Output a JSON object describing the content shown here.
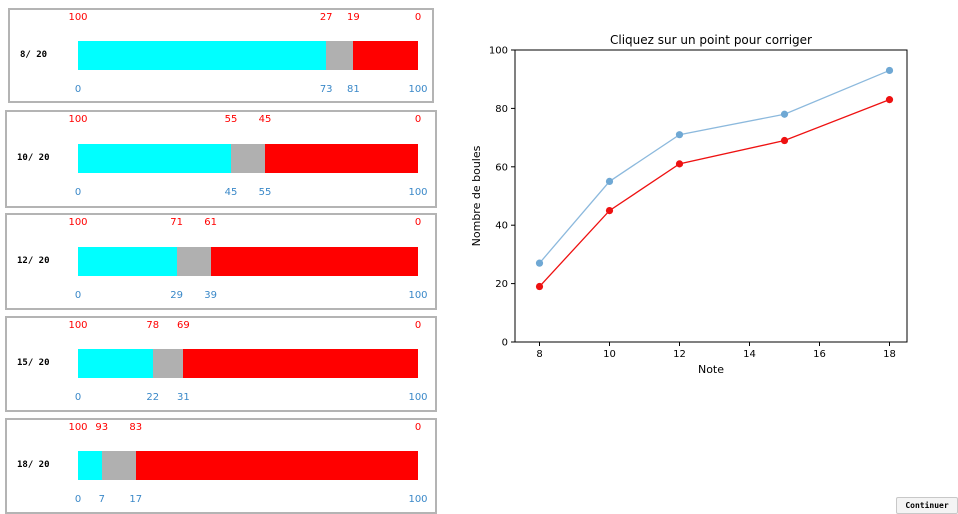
{
  "colors": {
    "correct": "#00ffff",
    "uncertain": "#b0b0b0",
    "wrong": "#ff0000",
    "top_ticks": "#ff0000",
    "bottom_ticks": "#3a88c8",
    "series_blue": "#6fa8d4",
    "series_red": "#ee1111"
  },
  "panels": [
    {
      "label": "8/ 20",
      "bounds": [
        73,
        81
      ],
      "top_ticks": [
        "100",
        "27",
        "19",
        "0"
      ],
      "bottom_ticks": [
        "0",
        "73",
        "81",
        "100"
      ]
    },
    {
      "label": "10/ 20",
      "bounds": [
        45,
        55
      ],
      "top_ticks": [
        "100",
        "55",
        "45",
        "0"
      ],
      "bottom_ticks": [
        "0",
        "45",
        "55",
        "100"
      ]
    },
    {
      "label": "12/ 20",
      "bounds": [
        29,
        39
      ],
      "top_ticks": [
        "100",
        "71",
        "61",
        "0"
      ],
      "bottom_ticks": [
        "0",
        "29",
        "39",
        "100"
      ]
    },
    {
      "label": "15/ 20",
      "bounds": [
        22,
        31
      ],
      "top_ticks": [
        "100",
        "78",
        "69",
        "0"
      ],
      "bottom_ticks": [
        "0",
        "22",
        "31",
        "100"
      ]
    },
    {
      "label": "18/ 20",
      "bounds": [
        7,
        17
      ],
      "top_ticks": [
        "100",
        "93",
        "83",
        "0"
      ],
      "bottom_ticks": [
        "0",
        "7",
        "17",
        "100"
      ]
    }
  ],
  "chart_data": {
    "type": "line",
    "title": "Cliquez sur un point pour corriger",
    "xlabel": "Note",
    "ylabel": "Nombre de boules",
    "x": [
      8,
      10,
      12,
      15,
      18
    ],
    "xlim": [
      7.3,
      18.5
    ],
    "ylim": [
      0,
      100
    ],
    "xticks": [
      8,
      10,
      12,
      14,
      16,
      18
    ],
    "yticks": [
      0,
      20,
      40,
      60,
      80,
      100
    ],
    "grid": false,
    "series": [
      {
        "values": [
          27,
          55,
          71,
          78,
          93
        ],
        "color": "#6fa8d4"
      },
      {
        "values": [
          19,
          45,
          61,
          69,
          83
        ],
        "color": "#ee1111"
      }
    ]
  },
  "continue_button": {
    "label": "Continuer"
  }
}
